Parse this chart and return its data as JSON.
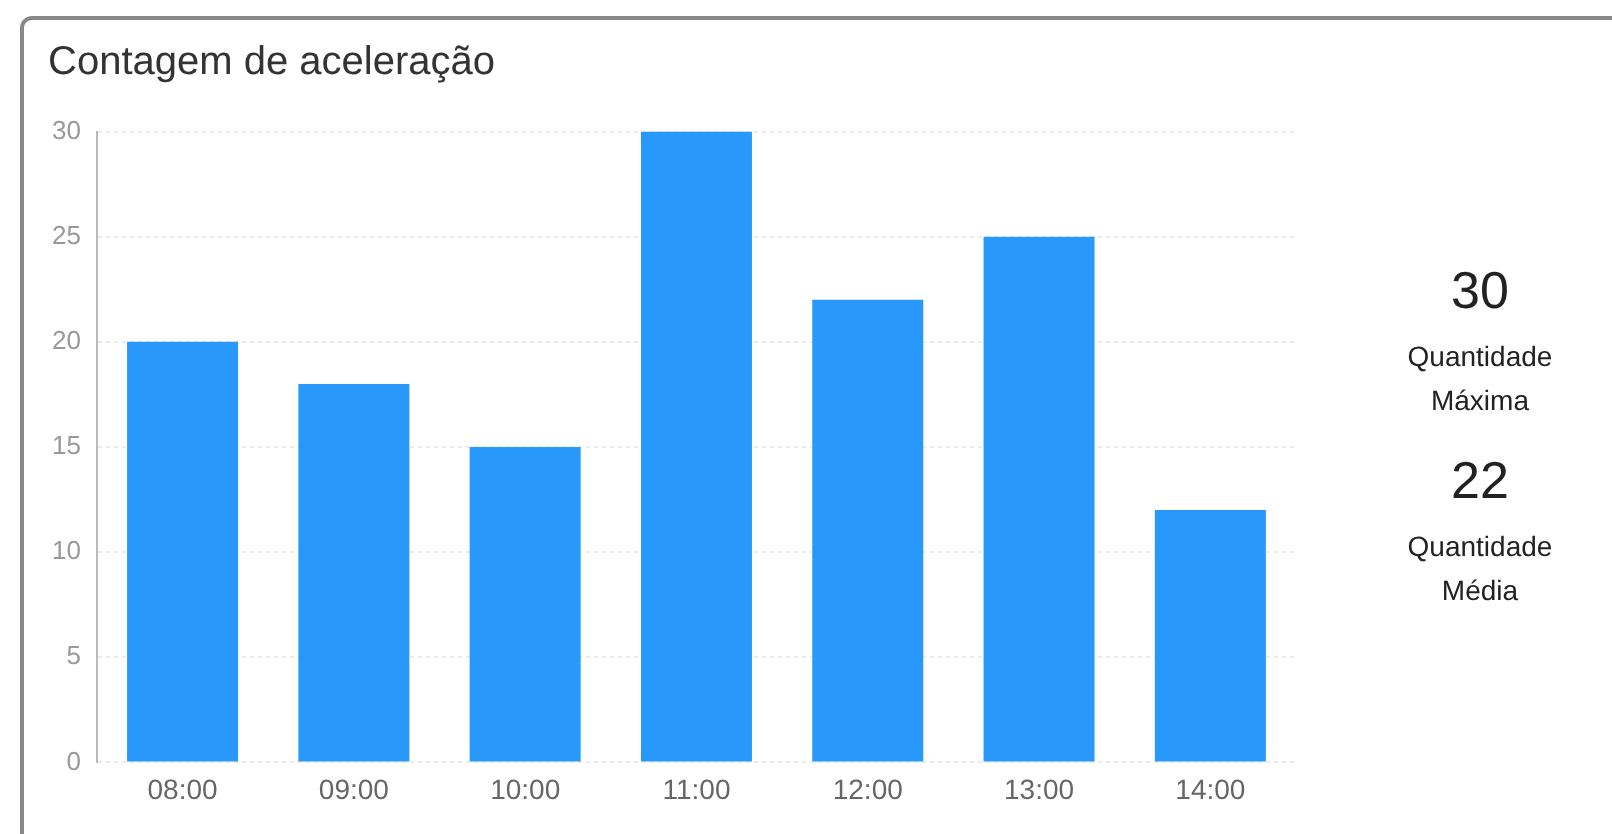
{
  "chart_data": {
    "type": "bar",
    "title": "Contagem de aceleração",
    "categories": [
      "08:00",
      "09:00",
      "10:00",
      "11:00",
      "12:00",
      "13:00",
      "14:00"
    ],
    "values": [
      20,
      18,
      15,
      30,
      22,
      25,
      12
    ],
    "color": "#2899fb",
    "ylim": [
      0,
      30
    ],
    "yticks": [
      0,
      5,
      10,
      15,
      20,
      25,
      30
    ],
    "grid": "y",
    "annotations": [
      "30",
      "Quantidade Máxima",
      "22",
      "Quantidade Média"
    ]
  }
}
